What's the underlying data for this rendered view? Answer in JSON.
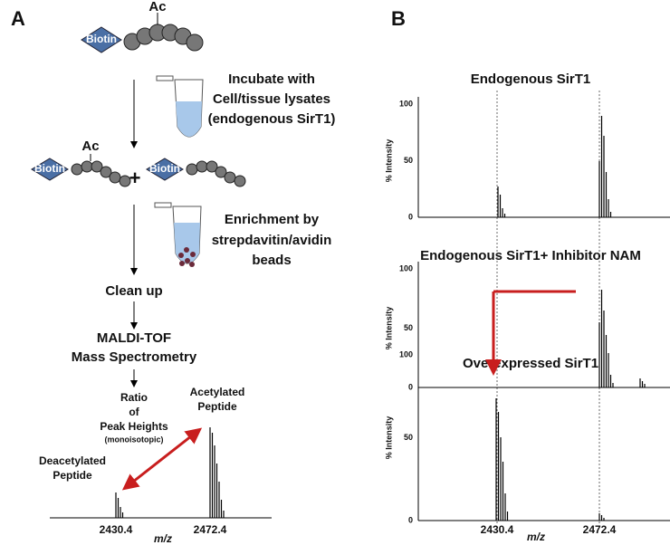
{
  "panel_a": {
    "label": "A",
    "ac_top": "Ac",
    "biotin_top": "Biotin",
    "incubate": [
      "Incubate with",
      "Cell/tissue lysates",
      "(endogenous SirT1)"
    ],
    "mixture": {
      "biotin_left": "Biotin",
      "ac": "Ac",
      "plus": "+",
      "biotin_right": "Biotin"
    },
    "enrichment": [
      "Enrichment by",
      "strepdavitin/avidin",
      "beads"
    ],
    "clean_up": "Clean up",
    "maldi": [
      "MALDI-TOF",
      "Mass Spectrometry"
    ],
    "ratio": [
      "Ratio",
      "of",
      "Peak Heights",
      "(monoisotopic)"
    ],
    "acetylated": [
      "Acetylated",
      "Peptide"
    ],
    "deacetylated": [
      "Deacetylated",
      "Peptide"
    ],
    "x_labels": [
      "2430.4",
      "2472.4"
    ],
    "x_axis": "m/z"
  },
  "panel_b": {
    "label": "B",
    "spectra": [
      {
        "title": "Endogenous SirT1",
        "y_axis": "% Intensity",
        "ticks": [
          "100",
          "50",
          "0"
        ]
      },
      {
        "title": "Endogenous SirT1+ Inhibitor NAM",
        "y_axis": "% Intensity",
        "ticks": [
          "100",
          "50",
          "0"
        ]
      },
      {
        "title": "Overexpressed SirT1",
        "y_axis": "% Intensity",
        "ticks": [
          "100",
          "50",
          "0"
        ]
      }
    ],
    "x_labels": [
      "2430.4",
      "2472.4"
    ],
    "x_axis": "m/z"
  }
}
